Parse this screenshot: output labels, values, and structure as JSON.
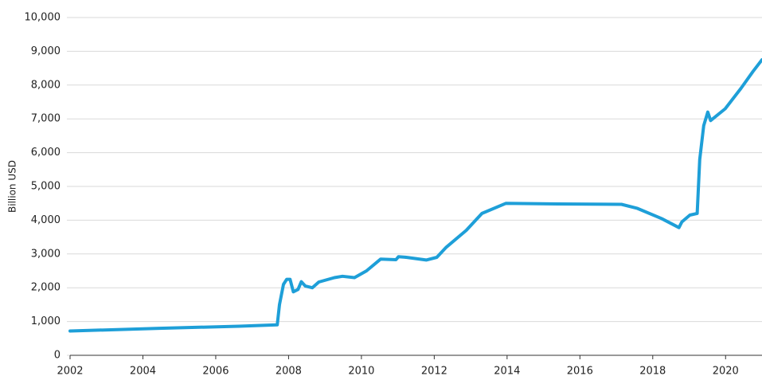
{
  "chart_data": {
    "type": "line",
    "y_label": "Billion USD",
    "x": [
      2002.0,
      2004.45,
      2006.64,
      2007.69,
      2007.75,
      2007.86,
      2007.95,
      2008.04,
      2008.13,
      2008.26,
      2008.35,
      2008.46,
      2008.65,
      2008.83,
      2009.26,
      2009.48,
      2009.81,
      2010.14,
      2010.53,
      2010.95,
      2011.02,
      2011.23,
      2011.78,
      2012.07,
      2012.33,
      2012.88,
      2013.31,
      2013.97,
      2015.39,
      2017.14,
      2017.58,
      2018.24,
      2018.72,
      2018.8,
      2019.02,
      2019.22,
      2019.29,
      2019.4,
      2019.51,
      2019.59,
      2019.99,
      2020.42,
      2020.75,
      2021.0
    ],
    "values": [
      720,
      800,
      860,
      900,
      1500,
      2100,
      2250,
      2250,
      1880,
      1950,
      2180,
      2050,
      2000,
      2170,
      2300,
      2340,
      2300,
      2500,
      2850,
      2830,
      2920,
      2900,
      2820,
      2900,
      3200,
      3700,
      4200,
      4500,
      4480,
      4470,
      4350,
      4050,
      3780,
      3950,
      4150,
      4200,
      5800,
      6800,
      7200,
      6950,
      7300,
      7900,
      8400,
      8750
    ],
    "color": "#1e9fd8",
    "xlim": [
      2002,
      2021
    ],
    "xticks": [
      2002,
      2004,
      2006,
      2008,
      2010,
      2012,
      2014,
      2016,
      2018,
      2020
    ],
    "ylim": [
      0,
      10000
    ],
    "yticks": [
      0,
      {
        "value": 1000,
        "label": "1,000"
      },
      {
        "value": 2000,
        "label": "2,000"
      },
      {
        "value": 3000,
        "label": "3,000"
      },
      {
        "value": 4000,
        "label": "4,000"
      },
      {
        "value": 5000,
        "label": "5,000"
      },
      {
        "value": 6000,
        "label": "6,000"
      },
      {
        "value": 7000,
        "label": "7,000"
      },
      {
        "value": 8000,
        "label": "8,000"
      },
      {
        "value": 9000,
        "label": "9,000"
      },
      {
        "value": 10000,
        "label": "10,000"
      }
    ],
    "grid": true
  }
}
